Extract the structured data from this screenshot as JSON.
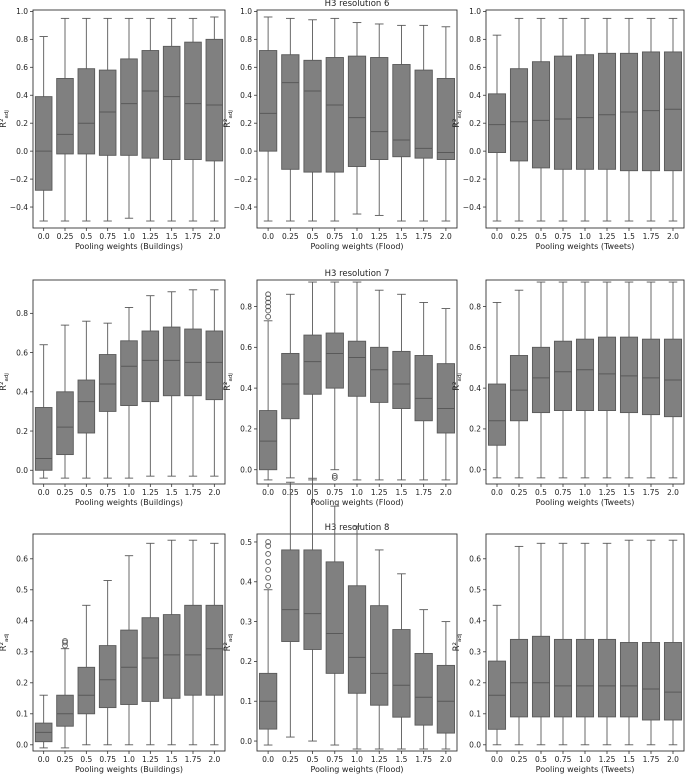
{
  "style": {
    "box_color": "#808080",
    "line_color": "#595959",
    "frame_color": "#333333",
    "text_color": "#222222"
  },
  "y_label_base": "R²",
  "y_label_sub": "adj",
  "x_label_prefix": "Pooling weights",
  "chart_data": [
    {
      "type": "boxplot",
      "title": "",
      "xlabel": "Pooling weights (Buildings)",
      "ylabel": "R² adj",
      "categories": [
        "0.0",
        "0.25",
        "0.5",
        "0.75",
        "1.0",
        "1.25",
        "1.5",
        "1.75",
        "2.0"
      ],
      "ylim": [
        -0.55,
        1.01
      ],
      "yticks": [
        -0.4,
        -0.2,
        0.0,
        0.2,
        0.4,
        0.6,
        0.8,
        1.0
      ],
      "tick_labels": [
        "−0.4",
        "−0.2",
        "0.0",
        "0.2",
        "0.4",
        "0.6",
        "0.8",
        "1.0"
      ],
      "boxes": [
        {
          "whislo": -0.5,
          "q1": -0.28,
          "med": 0.0,
          "q3": 0.39,
          "whishi": 0.82,
          "fliers": []
        },
        {
          "whislo": -0.5,
          "q1": -0.02,
          "med": 0.12,
          "q3": 0.52,
          "whishi": 0.95,
          "fliers": []
        },
        {
          "whislo": -0.5,
          "q1": -0.02,
          "med": 0.2,
          "q3": 0.59,
          "whishi": 0.95,
          "fliers": []
        },
        {
          "whislo": -0.5,
          "q1": -0.03,
          "med": 0.28,
          "q3": 0.58,
          "whishi": 0.95,
          "fliers": []
        },
        {
          "whislo": -0.48,
          "q1": -0.03,
          "med": 0.34,
          "q3": 0.66,
          "whishi": 0.95,
          "fliers": []
        },
        {
          "whislo": -0.5,
          "q1": -0.05,
          "med": 0.43,
          "q3": 0.72,
          "whishi": 0.95,
          "fliers": []
        },
        {
          "whislo": -0.5,
          "q1": -0.06,
          "med": 0.39,
          "q3": 0.75,
          "whishi": 0.95,
          "fliers": []
        },
        {
          "whislo": -0.5,
          "q1": -0.06,
          "med": 0.34,
          "q3": 0.78,
          "whishi": 0.95,
          "fliers": []
        },
        {
          "whislo": -0.5,
          "q1": -0.07,
          "med": 0.33,
          "q3": 0.8,
          "whishi": 0.96,
          "fliers": []
        }
      ]
    },
    {
      "type": "boxplot",
      "title": "H3 resolution 6",
      "xlabel": "Pooling weights (Flood)",
      "ylabel": "R² adj",
      "categories": [
        "0.0",
        "0.25",
        "0.5",
        "0.75",
        "1.0",
        "1.25",
        "1.5",
        "1.75",
        "2.0"
      ],
      "ylim": [
        -0.55,
        1.01
      ],
      "yticks": [
        -0.4,
        -0.2,
        0.0,
        0.2,
        0.4,
        0.6,
        0.8,
        1.0
      ],
      "tick_labels": [
        "−0.4",
        "−0.2",
        "0.0",
        "0.2",
        "0.4",
        "0.6",
        "0.8",
        "1.0"
      ],
      "boxes": [
        {
          "whislo": -0.5,
          "q1": 0.0,
          "med": 0.27,
          "q3": 0.72,
          "whishi": 0.96,
          "fliers": []
        },
        {
          "whislo": -0.5,
          "q1": -0.13,
          "med": 0.49,
          "q3": 0.69,
          "whishi": 0.95,
          "fliers": []
        },
        {
          "whislo": -0.5,
          "q1": -0.15,
          "med": 0.43,
          "q3": 0.65,
          "whishi": 0.94,
          "fliers": []
        },
        {
          "whislo": -0.5,
          "q1": -0.15,
          "med": 0.33,
          "q3": 0.67,
          "whishi": 0.95,
          "fliers": []
        },
        {
          "whislo": -0.45,
          "q1": -0.11,
          "med": 0.24,
          "q3": 0.68,
          "whishi": 0.92,
          "fliers": []
        },
        {
          "whislo": -0.46,
          "q1": -0.06,
          "med": 0.14,
          "q3": 0.67,
          "whishi": 0.91,
          "fliers": []
        },
        {
          "whislo": -0.5,
          "q1": -0.04,
          "med": 0.08,
          "q3": 0.62,
          "whishi": 0.9,
          "fliers": []
        },
        {
          "whislo": -0.5,
          "q1": -0.05,
          "med": 0.02,
          "q3": 0.58,
          "whishi": 0.9,
          "fliers": []
        },
        {
          "whislo": -0.5,
          "q1": -0.06,
          "med": -0.01,
          "q3": 0.52,
          "whishi": 0.89,
          "fliers": []
        }
      ]
    },
    {
      "type": "boxplot",
      "title": "",
      "xlabel": "Pooling weights (Tweets)",
      "ylabel": "R² adj",
      "categories": [
        "0.0",
        "0.25",
        "0.5",
        "0.75",
        "1.0",
        "1.25",
        "1.5",
        "1.75",
        "2.0"
      ],
      "ylim": [
        -0.55,
        1.01
      ],
      "yticks": [
        -0.4,
        -0.2,
        0.0,
        0.2,
        0.4,
        0.6,
        0.8,
        1.0
      ],
      "tick_labels": [
        "−0.4",
        "−0.2",
        "0.0",
        "0.2",
        "0.4",
        "0.6",
        "0.8",
        "1.0"
      ],
      "boxes": [
        {
          "whislo": -0.5,
          "q1": -0.01,
          "med": 0.19,
          "q3": 0.41,
          "whishi": 0.83,
          "fliers": []
        },
        {
          "whislo": -0.5,
          "q1": -0.07,
          "med": 0.21,
          "q3": 0.59,
          "whishi": 0.95,
          "fliers": []
        },
        {
          "whislo": -0.5,
          "q1": -0.12,
          "med": 0.22,
          "q3": 0.64,
          "whishi": 0.95,
          "fliers": []
        },
        {
          "whislo": -0.5,
          "q1": -0.13,
          "med": 0.23,
          "q3": 0.68,
          "whishi": 0.95,
          "fliers": []
        },
        {
          "whislo": -0.5,
          "q1": -0.13,
          "med": 0.24,
          "q3": 0.69,
          "whishi": 0.95,
          "fliers": []
        },
        {
          "whislo": -0.5,
          "q1": -0.13,
          "med": 0.26,
          "q3": 0.7,
          "whishi": 0.95,
          "fliers": []
        },
        {
          "whislo": -0.5,
          "q1": -0.14,
          "med": 0.28,
          "q3": 0.7,
          "whishi": 0.95,
          "fliers": []
        },
        {
          "whislo": -0.5,
          "q1": -0.14,
          "med": 0.29,
          "q3": 0.71,
          "whishi": 0.95,
          "fliers": []
        },
        {
          "whislo": -0.5,
          "q1": -0.14,
          "med": 0.3,
          "q3": 0.71,
          "whishi": 0.95,
          "fliers": []
        }
      ]
    },
    {
      "type": "boxplot",
      "title": "",
      "xlabel": "Pooling weights (Buildings)",
      "ylabel": "R² adj",
      "categories": [
        "0.0",
        "0.25",
        "0.5",
        "0.75",
        "1.0",
        "1.25",
        "1.5",
        "1.75",
        "2.0"
      ],
      "ylim": [
        -0.07,
        0.97
      ],
      "yticks": [
        0.0,
        0.2,
        0.4,
        0.6,
        0.8
      ],
      "tick_labels": [
        "0.0",
        "0.2",
        "0.4",
        "0.6",
        "0.8"
      ],
      "boxes": [
        {
          "whislo": -0.04,
          "q1": 0.0,
          "med": 0.06,
          "q3": 0.32,
          "whishi": 0.64,
          "fliers": []
        },
        {
          "whislo": -0.04,
          "q1": 0.08,
          "med": 0.22,
          "q3": 0.4,
          "whishi": 0.74,
          "fliers": []
        },
        {
          "whislo": -0.04,
          "q1": 0.19,
          "med": 0.35,
          "q3": 0.46,
          "whishi": 0.76,
          "fliers": []
        },
        {
          "whislo": -0.04,
          "q1": 0.3,
          "med": 0.44,
          "q3": 0.59,
          "whishi": 0.75,
          "fliers": []
        },
        {
          "whislo": -0.04,
          "q1": 0.33,
          "med": 0.53,
          "q3": 0.66,
          "whishi": 0.83,
          "fliers": []
        },
        {
          "whislo": -0.03,
          "q1": 0.35,
          "med": 0.56,
          "q3": 0.71,
          "whishi": 0.89,
          "fliers": []
        },
        {
          "whislo": -0.03,
          "q1": 0.38,
          "med": 0.56,
          "q3": 0.73,
          "whishi": 0.91,
          "fliers": []
        },
        {
          "whislo": -0.03,
          "q1": 0.38,
          "med": 0.55,
          "q3": 0.72,
          "whishi": 0.92,
          "fliers": []
        },
        {
          "whislo": -0.03,
          "q1": 0.36,
          "med": 0.55,
          "q3": 0.71,
          "whishi": 0.92,
          "fliers": []
        }
      ]
    },
    {
      "type": "boxplot",
      "title": "H3 resolution 7",
      "xlabel": "Pooling weights (Flood)",
      "ylabel": "R² adj",
      "categories": [
        "0.0",
        "0.25",
        "0.5",
        "0.75",
        "1.0",
        "1.25",
        "1.5",
        "1.75",
        "2.0"
      ],
      "ylim": [
        -0.07,
        0.93
      ],
      "yticks": [
        0.0,
        0.2,
        0.4,
        0.6,
        0.8
      ],
      "tick_labels": [
        "0.0",
        "0.2",
        "0.4",
        "0.6",
        "0.8"
      ],
      "boxes": [
        {
          "whislo": -0.05,
          "q1": 0.0,
          "med": 0.14,
          "q3": 0.29,
          "whishi": 0.73,
          "fliers": [
            0.75,
            0.78,
            0.8,
            0.82,
            0.84,
            0.86
          ]
        },
        {
          "whislo": -0.04,
          "q1": 0.25,
          "med": 0.42,
          "q3": 0.57,
          "whishi": 0.86,
          "fliers": []
        },
        {
          "whislo": -0.05,
          "q1": 0.37,
          "med": 0.53,
          "q3": 0.66,
          "whishi": 0.92,
          "fliers": []
        },
        {
          "whislo": 0.0,
          "q1": 0.4,
          "med": 0.57,
          "q3": 0.67,
          "whishi": 0.92,
          "fliers": [
            -0.03,
            -0.04
          ]
        },
        {
          "whislo": -0.05,
          "q1": 0.36,
          "med": 0.55,
          "q3": 0.63,
          "whishi": 0.92,
          "fliers": []
        },
        {
          "whislo": -0.05,
          "q1": 0.33,
          "med": 0.49,
          "q3": 0.6,
          "whishi": 0.88,
          "fliers": []
        },
        {
          "whislo": -0.05,
          "q1": 0.3,
          "med": 0.42,
          "q3": 0.58,
          "whishi": 0.86,
          "fliers": []
        },
        {
          "whislo": -0.05,
          "q1": 0.24,
          "med": 0.35,
          "q3": 0.56,
          "whishi": 0.82,
          "fliers": []
        },
        {
          "whislo": -0.05,
          "q1": 0.18,
          "med": 0.3,
          "q3": 0.52,
          "whishi": 0.79,
          "fliers": []
        }
      ]
    },
    {
      "type": "boxplot",
      "title": "",
      "xlabel": "Pooling weights (Tweets)",
      "ylabel": "R² adj",
      "categories": [
        "0.0",
        "0.25",
        "0.5",
        "0.75",
        "1.0",
        "1.25",
        "1.5",
        "1.75",
        "2.0"
      ],
      "ylim": [
        -0.07,
        0.93
      ],
      "yticks": [
        0.0,
        0.2,
        0.4,
        0.6,
        0.8
      ],
      "tick_labels": [
        "0.0",
        "0.2",
        "0.4",
        "0.6",
        "0.8"
      ],
      "boxes": [
        {
          "whislo": -0.04,
          "q1": 0.12,
          "med": 0.24,
          "q3": 0.42,
          "whishi": 0.82,
          "fliers": []
        },
        {
          "whislo": -0.04,
          "q1": 0.24,
          "med": 0.39,
          "q3": 0.56,
          "whishi": 0.88,
          "fliers": []
        },
        {
          "whislo": -0.04,
          "q1": 0.28,
          "med": 0.45,
          "q3": 0.6,
          "whishi": 0.92,
          "fliers": []
        },
        {
          "whislo": -0.04,
          "q1": 0.29,
          "med": 0.48,
          "q3": 0.63,
          "whishi": 0.92,
          "fliers": []
        },
        {
          "whislo": -0.04,
          "q1": 0.29,
          "med": 0.49,
          "q3": 0.64,
          "whishi": 0.92,
          "fliers": []
        },
        {
          "whislo": -0.04,
          "q1": 0.29,
          "med": 0.47,
          "q3": 0.65,
          "whishi": 0.92,
          "fliers": []
        },
        {
          "whislo": -0.04,
          "q1": 0.28,
          "med": 0.46,
          "q3": 0.65,
          "whishi": 0.92,
          "fliers": []
        },
        {
          "whislo": -0.04,
          "q1": 0.27,
          "med": 0.45,
          "q3": 0.64,
          "whishi": 0.92,
          "fliers": []
        },
        {
          "whislo": -0.04,
          "q1": 0.26,
          "med": 0.44,
          "q3": 0.64,
          "whishi": 0.92,
          "fliers": []
        }
      ]
    },
    {
      "type": "boxplot",
      "title": "",
      "xlabel": "Pooling weights (Buildings)",
      "ylabel": "R² adj",
      "categories": [
        "0.0",
        "0.25",
        "0.5",
        "0.75",
        "1.0",
        "1.25",
        "1.5",
        "1.75",
        "2.0"
      ],
      "ylim": [
        -0.02,
        0.68
      ],
      "yticks": [
        0.0,
        0.1,
        0.2,
        0.3,
        0.4,
        0.5,
        0.6
      ],
      "tick_labels": [
        "0.0",
        "0.1",
        "0.2",
        "0.3",
        "0.4",
        "0.5",
        "0.6"
      ],
      "boxes": [
        {
          "whislo": -0.01,
          "q1": 0.01,
          "med": 0.04,
          "q3": 0.07,
          "whishi": 0.16,
          "fliers": []
        },
        {
          "whislo": -0.01,
          "q1": 0.06,
          "med": 0.1,
          "q3": 0.16,
          "whishi": 0.31,
          "fliers": [
            0.32,
            0.33,
            0.335
          ]
        },
        {
          "whislo": 0.0,
          "q1": 0.1,
          "med": 0.16,
          "q3": 0.25,
          "whishi": 0.45,
          "fliers": []
        },
        {
          "whislo": 0.0,
          "q1": 0.12,
          "med": 0.21,
          "q3": 0.32,
          "whishi": 0.53,
          "fliers": []
        },
        {
          "whislo": 0.0,
          "q1": 0.13,
          "med": 0.25,
          "q3": 0.37,
          "whishi": 0.61,
          "fliers": []
        },
        {
          "whislo": 0.0,
          "q1": 0.14,
          "med": 0.28,
          "q3": 0.41,
          "whishi": 0.65,
          "fliers": []
        },
        {
          "whislo": 0.0,
          "q1": 0.15,
          "med": 0.29,
          "q3": 0.42,
          "whishi": 0.66,
          "fliers": []
        },
        {
          "whislo": 0.0,
          "q1": 0.16,
          "med": 0.29,
          "q3": 0.45,
          "whishi": 0.66,
          "fliers": []
        },
        {
          "whislo": 0.0,
          "q1": 0.16,
          "med": 0.31,
          "q3": 0.45,
          "whishi": 0.65,
          "fliers": []
        }
      ]
    },
    {
      "type": "boxplot",
      "title": "H3 resolution 8",
      "xlabel": "Pooling weights (Flood)",
      "ylabel": "R² adj",
      "categories": [
        "0.0",
        "0.25",
        "0.5",
        "0.75",
        "1.0",
        "1.25",
        "1.5",
        "1.75",
        "2.0"
      ],
      "ylim": [
        -0.025,
        0.52
      ],
      "yticks": [
        0.0,
        0.1,
        0.2,
        0.3,
        0.4,
        0.5
      ],
      "tick_labels": [
        "0.0",
        "0.1",
        "0.2",
        "0.3",
        "0.4",
        "0.5"
      ],
      "boxes": [
        {
          "whislo": -0.01,
          "q1": 0.03,
          "med": 0.1,
          "q3": 0.17,
          "whishi": 0.38,
          "fliers": [
            0.39,
            0.41,
            0.43,
            0.45,
            0.47,
            0.49,
            0.5
          ]
        },
        {
          "whislo": 0.01,
          "q1": 0.25,
          "med": 0.33,
          "q3": 0.48,
          "whishi": 0.65,
          "fliers": []
        },
        {
          "whislo": 0.0,
          "q1": 0.23,
          "med": 0.32,
          "q3": 0.48,
          "whishi": 0.66,
          "fliers": []
        },
        {
          "whislo": -0.01,
          "q1": 0.17,
          "med": 0.27,
          "q3": 0.45,
          "whishi": 0.59,
          "fliers": []
        },
        {
          "whislo": -0.02,
          "q1": 0.12,
          "med": 0.21,
          "q3": 0.39,
          "whishi": 0.54,
          "fliers": []
        },
        {
          "whislo": -0.02,
          "q1": 0.09,
          "med": 0.17,
          "q3": 0.34,
          "whishi": 0.48,
          "fliers": []
        },
        {
          "whislo": -0.02,
          "q1": 0.06,
          "med": 0.14,
          "q3": 0.28,
          "whishi": 0.42,
          "fliers": []
        },
        {
          "whislo": -0.02,
          "q1": 0.04,
          "med": 0.11,
          "q3": 0.22,
          "whishi": 0.33,
          "fliers": []
        },
        {
          "whislo": -0.02,
          "q1": 0.02,
          "med": 0.1,
          "q3": 0.19,
          "whishi": 0.3,
          "fliers": []
        }
      ]
    },
    {
      "type": "boxplot",
      "title": "",
      "xlabel": "Pooling weights (Tweets)",
      "ylabel": "R² adj",
      "categories": [
        "0.0",
        "0.25",
        "0.5",
        "0.75",
        "1.0",
        "1.25",
        "1.5",
        "1.75",
        "2.0"
      ],
      "ylim": [
        -0.02,
        0.68
      ],
      "yticks": [
        0.0,
        0.1,
        0.2,
        0.3,
        0.4,
        0.5,
        0.6
      ],
      "tick_labels": [
        "0.0",
        "0.1",
        "0.2",
        "0.3",
        "0.4",
        "0.5",
        "0.6"
      ],
      "boxes": [
        {
          "whislo": 0.0,
          "q1": 0.05,
          "med": 0.16,
          "q3": 0.27,
          "whishi": 0.45,
          "fliers": []
        },
        {
          "whislo": 0.0,
          "q1": 0.09,
          "med": 0.2,
          "q3": 0.34,
          "whishi": 0.64,
          "fliers": []
        },
        {
          "whislo": 0.0,
          "q1": 0.09,
          "med": 0.2,
          "q3": 0.35,
          "whishi": 0.65,
          "fliers": []
        },
        {
          "whislo": 0.0,
          "q1": 0.09,
          "med": 0.19,
          "q3": 0.34,
          "whishi": 0.65,
          "fliers": []
        },
        {
          "whislo": 0.0,
          "q1": 0.09,
          "med": 0.19,
          "q3": 0.34,
          "whishi": 0.65,
          "fliers": []
        },
        {
          "whislo": 0.0,
          "q1": 0.09,
          "med": 0.19,
          "q3": 0.34,
          "whishi": 0.65,
          "fliers": []
        },
        {
          "whislo": 0.0,
          "q1": 0.09,
          "med": 0.19,
          "q3": 0.33,
          "whishi": 0.66,
          "fliers": []
        },
        {
          "whislo": 0.0,
          "q1": 0.08,
          "med": 0.18,
          "q3": 0.33,
          "whishi": 0.66,
          "fliers": []
        },
        {
          "whislo": 0.0,
          "q1": 0.08,
          "med": 0.17,
          "q3": 0.33,
          "whishi": 0.66,
          "fliers": []
        }
      ]
    }
  ]
}
